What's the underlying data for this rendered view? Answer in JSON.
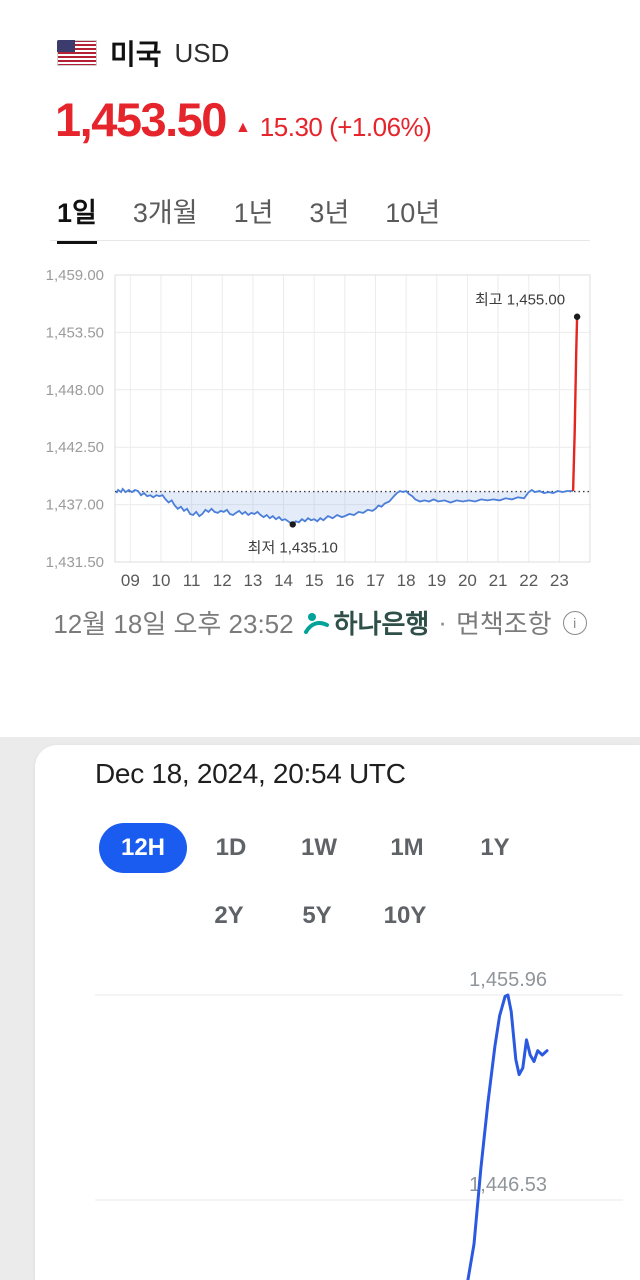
{
  "header": {
    "country": "미국",
    "currency_code": "USD",
    "rate": "1,453.50",
    "arrow": "▲",
    "change": "15.30 (+1.06%)"
  },
  "tabs": {
    "items": [
      {
        "label": "1일",
        "active": true
      },
      {
        "label": "3개월",
        "active": false
      },
      {
        "label": "1년",
        "active": false
      },
      {
        "label": "3년",
        "active": false
      },
      {
        "label": "10년",
        "active": false
      }
    ]
  },
  "footer": {
    "timestamp": "12월 18일 오후 23:52",
    "provider": "하나은행",
    "separator": "·",
    "disclaimer": "면책조항"
  },
  "card": {
    "title": "Dec 18, 2024, 20:54 UTC",
    "ranges_row1": [
      {
        "label": "12H",
        "active": true
      },
      {
        "label": "1D",
        "active": false
      },
      {
        "label": "1W",
        "active": false
      },
      {
        "label": "1M",
        "active": false
      },
      {
        "label": "1Y",
        "active": false
      }
    ],
    "ranges_row2": [
      {
        "label": "2Y",
        "active": false
      },
      {
        "label": "5Y",
        "active": false
      },
      {
        "label": "10Y",
        "active": false
      }
    ]
  },
  "colors": {
    "up_red": "#e5242c",
    "chart_blue": "#4c7fd9",
    "chart_fill": "rgba(88,134,216,0.16)",
    "spike_red": "#e3261f",
    "pill_blue": "#1a5cf0",
    "bottom_line_blue": "#2b59e0",
    "hana_green": "#00a29a"
  },
  "chart_data": [
    {
      "type": "line",
      "title": "",
      "xlabel": "",
      "ylabel": "",
      "ylim": [
        1431.5,
        1459.0
      ],
      "grid": true,
      "baseline": 1438.25,
      "y_ticks": [
        [
          "1,459.00",
          1459.0
        ],
        [
          "1,453.50",
          1453.5
        ],
        [
          "1,448.00",
          1448.0
        ],
        [
          "1,442.50",
          1442.5
        ],
        [
          "1,437.00",
          1437.0
        ],
        [
          "1,431.50",
          1431.5
        ]
      ],
      "x_ticks": [
        [
          "09",
          9
        ],
        [
          "10",
          10
        ],
        [
          "11",
          11
        ],
        [
          "12",
          12
        ],
        [
          "13",
          13
        ],
        [
          "14",
          14
        ],
        [
          "15",
          15
        ],
        [
          "16",
          16
        ],
        [
          "17",
          17
        ],
        [
          "18",
          18
        ],
        [
          "19",
          19
        ],
        [
          "20",
          20
        ],
        [
          "21",
          21
        ],
        [
          "22",
          22
        ],
        [
          "23",
          23
        ]
      ],
      "high_label": "최고 1,455.00",
      "high_point": [
        23.58,
        1455.0
      ],
      "low_label": "최저 1,435.10",
      "low_point": [
        14.3,
        1435.1
      ],
      "line_color": "#4c7fd9",
      "fill_color": "rgba(88,134,216,0.16)",
      "spike_color": "#e3261f",
      "series": [
        [
          8.55,
          1438.1
        ],
        [
          8.6,
          1438.4
        ],
        [
          8.7,
          1438.2
        ],
        [
          8.75,
          1438.5
        ],
        [
          8.85,
          1438.2
        ],
        [
          8.95,
          1438.4
        ],
        [
          9.05,
          1438.2
        ],
        [
          9.15,
          1438.4
        ],
        [
          9.25,
          1438.3
        ],
        [
          9.35,
          1437.9
        ],
        [
          9.45,
          1438.1
        ],
        [
          9.55,
          1437.8
        ],
        [
          9.65,
          1437.9
        ],
        [
          9.75,
          1437.7
        ],
        [
          9.85,
          1437.9
        ],
        [
          9.95,
          1437.8
        ],
        [
          10.05,
          1437.9
        ],
        [
          10.15,
          1437.5
        ],
        [
          10.25,
          1437.2
        ],
        [
          10.35,
          1437.4
        ],
        [
          10.45,
          1436.9
        ],
        [
          10.55,
          1436.6
        ],
        [
          10.65,
          1436.8
        ],
        [
          10.75,
          1436.4
        ],
        [
          10.85,
          1436.6
        ],
        [
          10.95,
          1436.1
        ],
        [
          11.05,
          1436.0
        ],
        [
          11.15,
          1436.3
        ],
        [
          11.25,
          1435.9
        ],
        [
          11.35,
          1436.1
        ],
        [
          11.45,
          1436.5
        ],
        [
          11.55,
          1436.3
        ],
        [
          11.65,
          1436.6
        ],
        [
          11.75,
          1436.3
        ],
        [
          11.85,
          1436.2
        ],
        [
          11.95,
          1436.4
        ],
        [
          12.05,
          1436.3
        ],
        [
          12.15,
          1436.5
        ],
        [
          12.25,
          1436.1
        ],
        [
          12.35,
          1436.0
        ],
        [
          12.45,
          1436.2
        ],
        [
          12.55,
          1436.4
        ],
        [
          12.65,
          1436.1
        ],
        [
          12.75,
          1436.3
        ],
        [
          12.85,
          1436.0
        ],
        [
          12.95,
          1436.2
        ],
        [
          13.05,
          1436.1
        ],
        [
          13.15,
          1436.3
        ],
        [
          13.25,
          1436.0
        ],
        [
          13.35,
          1435.8
        ],
        [
          13.45,
          1436.0
        ],
        [
          13.55,
          1435.7
        ],
        [
          13.65,
          1435.9
        ],
        [
          13.75,
          1435.6
        ],
        [
          13.85,
          1435.8
        ],
        [
          13.95,
          1435.5
        ],
        [
          14.05,
          1435.6
        ],
        [
          14.15,
          1435.4
        ],
        [
          14.25,
          1435.2
        ],
        [
          14.3,
          1435.1
        ],
        [
          14.4,
          1435.4
        ],
        [
          14.5,
          1435.3
        ],
        [
          14.6,
          1435.6
        ],
        [
          14.7,
          1435.4
        ],
        [
          14.8,
          1435.7
        ],
        [
          14.9,
          1435.5
        ],
        [
          15.0,
          1435.6
        ],
        [
          15.1,
          1435.4
        ],
        [
          15.2,
          1435.7
        ],
        [
          15.3,
          1435.5
        ],
        [
          15.45,
          1435.9
        ],
        [
          15.6,
          1435.7
        ],
        [
          15.75,
          1436.0
        ],
        [
          15.9,
          1435.8
        ],
        [
          16.0,
          1435.9
        ],
        [
          16.15,
          1436.1
        ],
        [
          16.3,
          1436.0
        ],
        [
          16.45,
          1436.3
        ],
        [
          16.6,
          1436.2
        ],
        [
          16.75,
          1436.5
        ],
        [
          16.9,
          1436.4
        ],
        [
          17.0,
          1436.6
        ],
        [
          17.1,
          1436.9
        ],
        [
          17.2,
          1436.8
        ],
        [
          17.3,
          1437.1
        ],
        [
          17.45,
          1437.3
        ],
        [
          17.6,
          1437.8
        ],
        [
          17.7,
          1438.1
        ],
        [
          17.8,
          1438.3
        ],
        [
          17.9,
          1438.2
        ],
        [
          18.0,
          1438.3
        ],
        [
          18.1,
          1438.0
        ],
        [
          18.2,
          1437.8
        ],
        [
          18.3,
          1437.5
        ],
        [
          18.45,
          1437.3
        ],
        [
          18.6,
          1437.4
        ],
        [
          18.75,
          1437.3
        ],
        [
          18.9,
          1437.5
        ],
        [
          19.05,
          1437.3
        ],
        [
          19.25,
          1437.4
        ],
        [
          19.45,
          1437.2
        ],
        [
          19.65,
          1437.4
        ],
        [
          19.85,
          1437.3
        ],
        [
          20.05,
          1437.4
        ],
        [
          20.25,
          1437.3
        ],
        [
          20.45,
          1437.5
        ],
        [
          20.65,
          1437.4
        ],
        [
          20.85,
          1437.5
        ],
        [
          21.05,
          1437.4
        ],
        [
          21.25,
          1437.6
        ],
        [
          21.45,
          1437.5
        ],
        [
          21.65,
          1437.7
        ],
        [
          21.85,
          1437.6
        ],
        [
          22.0,
          1438.2
        ],
        [
          22.1,
          1438.4
        ],
        [
          22.2,
          1438.2
        ],
        [
          22.35,
          1438.3
        ],
        [
          22.5,
          1438.1
        ],
        [
          22.65,
          1438.2
        ],
        [
          22.8,
          1438.1
        ],
        [
          22.95,
          1438.3
        ],
        [
          23.1,
          1438.2
        ],
        [
          23.25,
          1438.3
        ],
        [
          23.45,
          1438.3
        ]
      ],
      "spike": [
        [
          23.45,
          1438.3
        ],
        [
          23.5,
          1444.0
        ],
        [
          23.55,
          1451.5
        ],
        [
          23.58,
          1455.0
        ]
      ]
    },
    {
      "type": "line",
      "title": "",
      "xlabel": "",
      "ylabel": "",
      "grid": true,
      "line_color": "#2b59e0",
      "y_labels": [
        [
          "1,455.96",
          1455.96
        ],
        [
          "1,446.53",
          1446.53
        ]
      ],
      "points": [
        [
          0.02,
          1441.6
        ],
        [
          0.1,
          1441.8
        ],
        [
          0.2,
          1441.5
        ],
        [
          0.3,
          1441.9
        ],
        [
          0.4,
          1441.6
        ],
        [
          0.5,
          1441.8
        ],
        [
          0.6,
          1441.5
        ],
        [
          0.7,
          1441.7
        ],
        [
          0.78,
          1441.9
        ],
        [
          0.8,
          1442.6
        ],
        [
          0.815,
          1444.5
        ],
        [
          0.83,
          1448.0
        ],
        [
          0.845,
          1451.0
        ],
        [
          0.86,
          1453.6
        ],
        [
          0.87,
          1455.0
        ],
        [
          0.882,
          1455.9
        ],
        [
          0.888,
          1455.96
        ],
        [
          0.895,
          1455.2
        ],
        [
          0.905,
          1453.0
        ],
        [
          0.912,
          1452.3
        ],
        [
          0.92,
          1452.6
        ],
        [
          0.928,
          1453.9
        ],
        [
          0.936,
          1453.2
        ],
        [
          0.944,
          1452.9
        ],
        [
          0.952,
          1453.4
        ],
        [
          0.962,
          1453.2
        ],
        [
          0.972,
          1453.4
        ]
      ]
    }
  ]
}
